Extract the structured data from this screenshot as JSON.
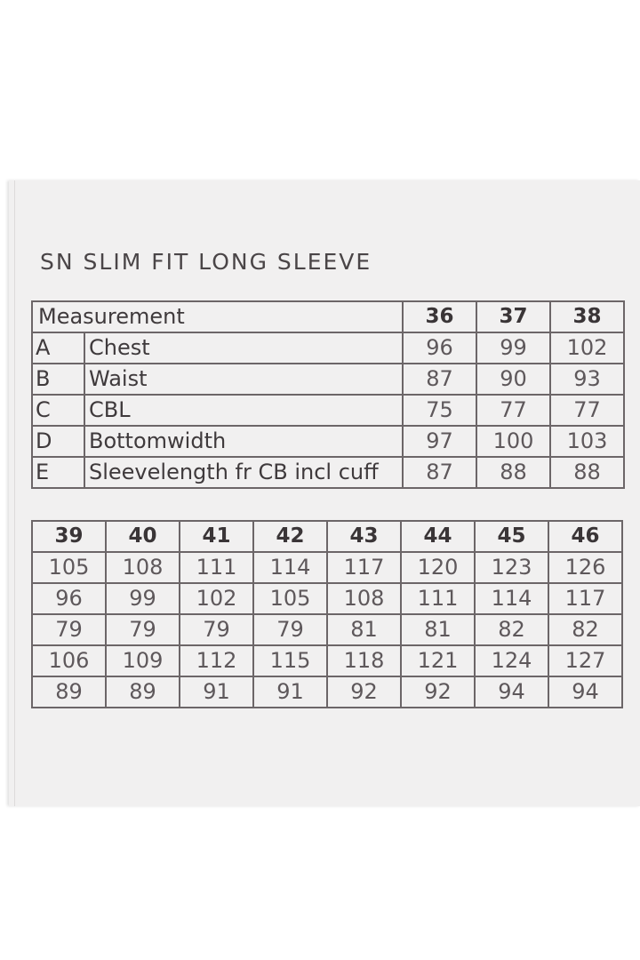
{
  "title": "SN SLIM FIT LONG SLEEVE",
  "table1": {
    "header_label": "Measurement",
    "sizes": [
      "36",
      "37",
      "38"
    ],
    "rows": [
      {
        "letter": "A",
        "label": "Chest",
        "values": [
          "96",
          "99",
          "102"
        ]
      },
      {
        "letter": "B",
        "label": "Waist",
        "values": [
          "87",
          "90",
          "93"
        ]
      },
      {
        "letter": "C",
        "label": "CBL",
        "values": [
          "75",
          "77",
          "77"
        ]
      },
      {
        "letter": "D",
        "label": "Bottomwidth",
        "values": [
          "97",
          "100",
          "103"
        ]
      },
      {
        "letter": "E",
        "label": "Sleevelength fr CB incl cuff",
        "values": [
          "87",
          "88",
          "88"
        ]
      }
    ]
  },
  "table2": {
    "sizes": [
      "39",
      "40",
      "41",
      "42",
      "43",
      "44",
      "45",
      "46"
    ],
    "rows": [
      [
        "105",
        "108",
        "111",
        "114",
        "117",
        "120",
        "123",
        "126"
      ],
      [
        "96",
        "99",
        "102",
        "105",
        "108",
        "111",
        "114",
        "117"
      ],
      [
        "79",
        "79",
        "79",
        "79",
        "81",
        "81",
        "82",
        "82"
      ],
      [
        "106",
        "109",
        "112",
        "115",
        "118",
        "121",
        "124",
        "127"
      ],
      [
        "89",
        "89",
        "91",
        "91",
        "92",
        "92",
        "94",
        "94"
      ]
    ]
  }
}
